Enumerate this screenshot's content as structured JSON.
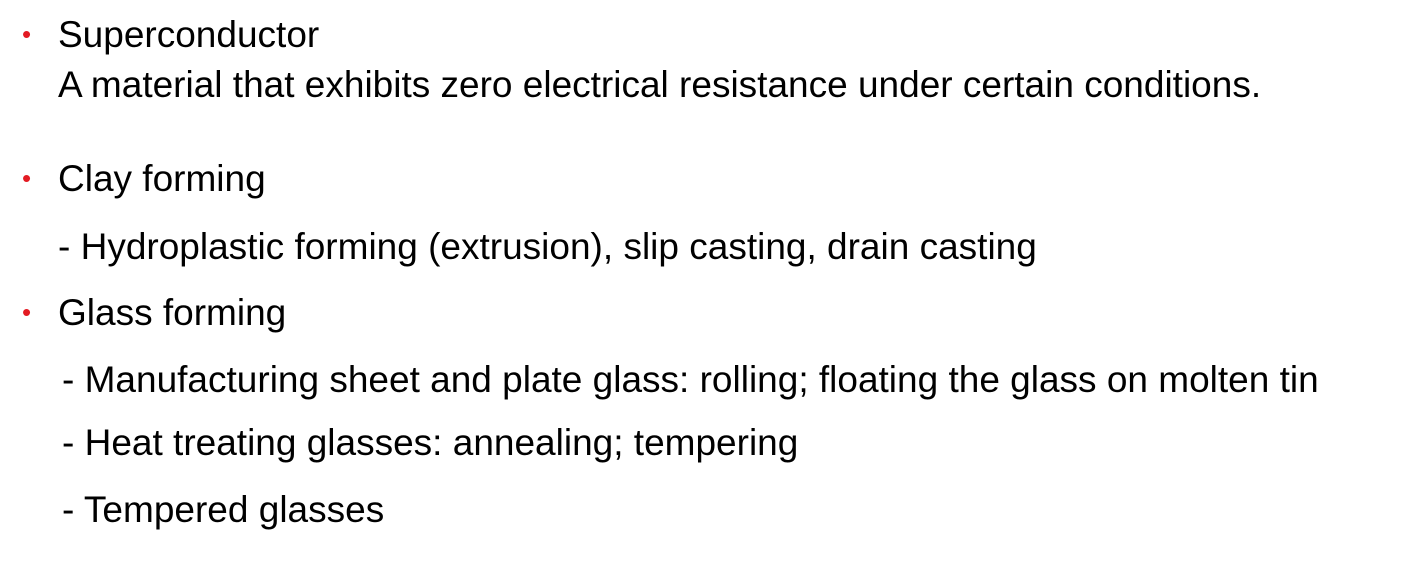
{
  "slide": {
    "bullet_color": "#e31b23",
    "items": [
      {
        "heading": "Superconductor",
        "description": "A material that exhibits zero electrical resistance under certain conditions."
      },
      {
        "heading": "Clay forming",
        "subitems": [
          "- Hydroplastic forming (extrusion), slip casting, drain casting"
        ]
      },
      {
        "heading": "Glass forming",
        "subitems": [
          "- Manufacturing sheet and plate glass: rolling; floating the glass on molten tin",
          "- Heat treating glasses: annealing; tempering",
          "- Tempered glasses"
        ]
      }
    ]
  }
}
